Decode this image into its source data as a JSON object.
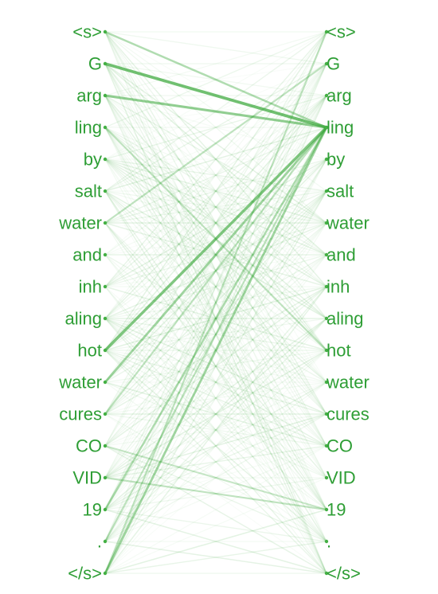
{
  "tokens": [
    "<s>",
    "G",
    "arg",
    "ling",
    "by",
    "salt",
    "water",
    "and",
    "inh",
    "aling",
    "hot",
    "water",
    "cures",
    "CO",
    "VID",
    "19",
    ".",
    "</s>"
  ],
  "colors": {
    "token_text": "#2e9e35",
    "edge": "#3aa83a",
    "background": "#ffffff"
  }
}
